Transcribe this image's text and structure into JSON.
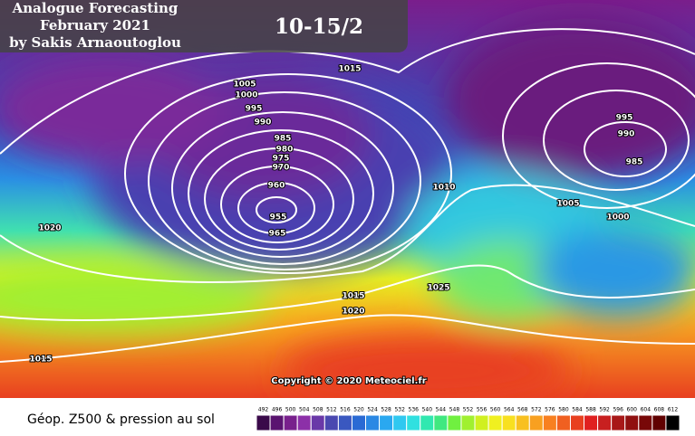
{
  "header": {
    "lines": [
      "Analogue Forecasting",
      "February 2021",
      "by Sakis Arnaoutoglou"
    ],
    "date": "10-15/2"
  },
  "isobar_labels": [
    "1015",
    "1005",
    "1000",
    "995",
    "990",
    "985",
    "980",
    "975",
    "970",
    "960",
    "955",
    "965",
    "1010",
    "1020",
    "1015",
    "1020",
    "1025",
    "1015",
    "995",
    "990",
    "985",
    "1005",
    "1000"
  ],
  "copyright": "Copyright © 2020 Meteociel.fr",
  "legend": {
    "label": "Géop. Z500 & pression au sol",
    "ticks": [
      492,
      496,
      500,
      504,
      508,
      512,
      516,
      520,
      524,
      528,
      532,
      536,
      540,
      544,
      548,
      552,
      556,
      560,
      564,
      568,
      572,
      576,
      580,
      584,
      588,
      592,
      596,
      600,
      604,
      608,
      612
    ],
    "colors": [
      "#3a0a4a",
      "#5a1470",
      "#78208c",
      "#8c30a8",
      "#6a38a8",
      "#4a48b0",
      "#3a58c0",
      "#2a6ad4",
      "#2a88e4",
      "#2aa8f0",
      "#30c8f0",
      "#30e0e0",
      "#30e8b0",
      "#40e880",
      "#70f040",
      "#a0f030",
      "#d0f020",
      "#f0f020",
      "#f8e020",
      "#f8c020",
      "#f8a020",
      "#f88020",
      "#f06020",
      "#e84020",
      "#e02020",
      "#c82020",
      "#a81818",
      "#901010",
      "#780808",
      "#600000",
      "#000000"
    ]
  }
}
